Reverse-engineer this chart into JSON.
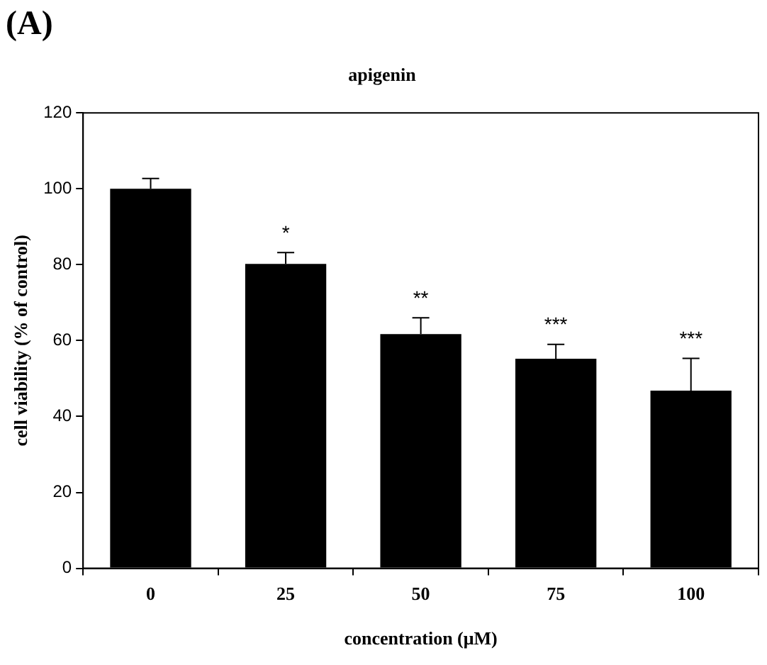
{
  "chart_data": {
    "type": "bar",
    "title": "apigenin",
    "xlabel": "concentration (μM)",
    "ylabel": "cell viability (% of control)",
    "categories": [
      "0",
      "25",
      "50",
      "75",
      "100"
    ],
    "values": [
      100,
      80.2,
      61.7,
      55.2,
      46.8
    ],
    "errors": [
      [
        100,
        102.7
      ],
      [
        80.2,
        83.2
      ],
      [
        61.7,
        66
      ],
      [
        55.2,
        59
      ],
      [
        46.8,
        55.3
      ]
    ],
    "color": "#000000",
    "ylim": [
      0,
      120
    ],
    "yticks": [
      0,
      20,
      40,
      60,
      80,
      100,
      120
    ],
    "annotations": [
      "(A)",
      "*",
      "**",
      "***",
      "***"
    ]
  }
}
